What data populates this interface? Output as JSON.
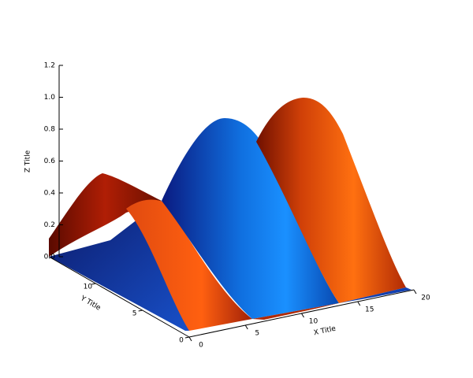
{
  "chart_data": {
    "type": "surface",
    "xlabel": "X Title",
    "ylabel": "Y Title",
    "zlabel": "Z Title",
    "xlim": [
      0,
      20
    ],
    "ylim": [
      0,
      15
    ],
    "zlim": [
      0,
      1.2
    ],
    "xticks": [
      0,
      5,
      10,
      15,
      20
    ],
    "yticks": [
      0,
      5,
      10
    ],
    "zticks": [
      {
        "value": 0,
        "label": "0.0"
      },
      0.2,
      0.4,
      0.6,
      0.8,
      {
        "value": 1,
        "label": "1.0"
      },
      1.2
    ]
  }
}
